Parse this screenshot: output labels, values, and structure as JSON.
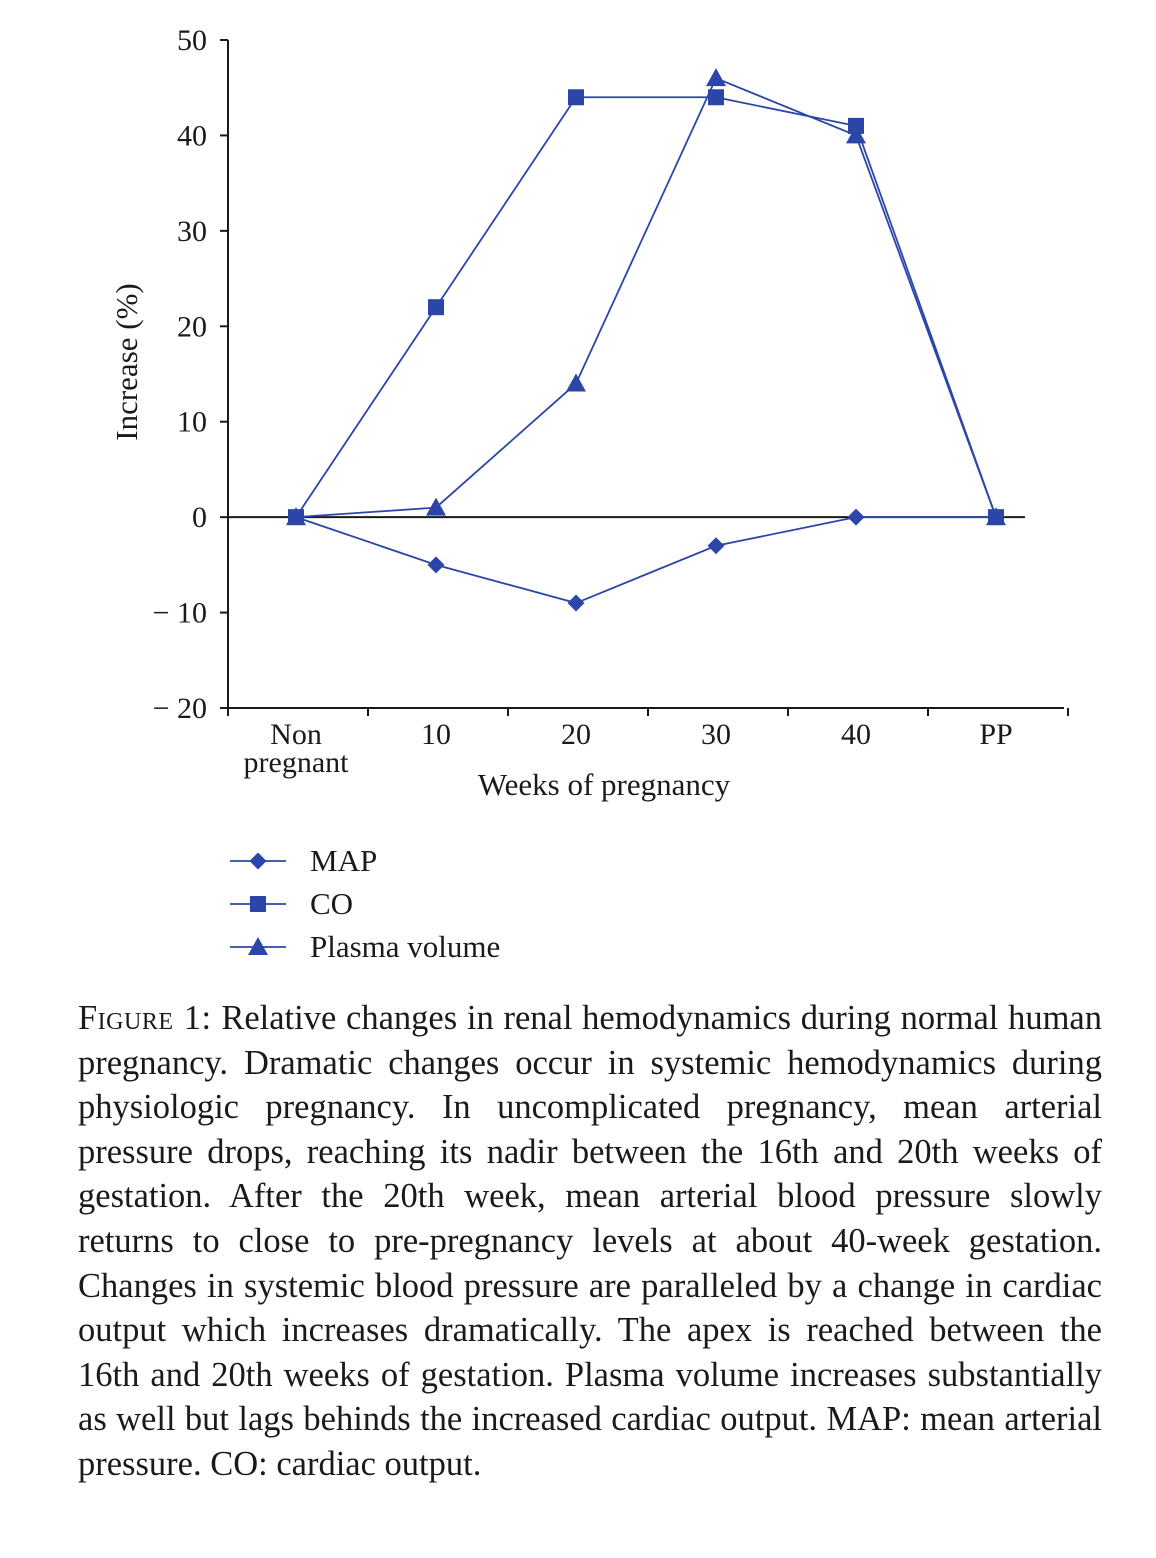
{
  "chart_data": {
    "type": "line",
    "categories": [
      "Non pregnant",
      "10",
      "20",
      "30",
      "40",
      "PP"
    ],
    "category_lines": [
      [
        "Non",
        "pregnant"
      ],
      [
        "10"
      ],
      [
        "20"
      ],
      [
        "30"
      ],
      [
        "40"
      ],
      [
        "PP"
      ]
    ],
    "xlabel": "Weeks of pregnancy",
    "ylabel": "Increase (%)",
    "ylim": [
      -20,
      50
    ],
    "yticks": [
      50,
      40,
      30,
      20,
      10,
      0,
      -10,
      -20
    ],
    "ytick_labels": [
      "50",
      "40",
      "30",
      "20",
      "10",
      "0",
      "− 10",
      "− 20"
    ],
    "grid": false,
    "legend_position": "bottom-left",
    "series": [
      {
        "name": "MAP",
        "marker": "diamond",
        "values": [
          0,
          -5,
          -9,
          -3,
          0,
          0
        ]
      },
      {
        "name": "CO",
        "marker": "square",
        "values": [
          0,
          22,
          44,
          44,
          41,
          0
        ]
      },
      {
        "name": "Plasma volume",
        "marker": "triangle",
        "values": [
          0,
          1,
          14,
          46,
          40,
          0
        ]
      }
    ],
    "colors": {
      "series": "#2b46a8",
      "axis": "#1a1a1a"
    }
  },
  "caption": {
    "label": "Figure 1:",
    "text": " Relative changes in renal hemodynamics during normal human pregnancy. Dramatic changes occur in systemic hemody­namics during physiologic pregnancy. In uncomplicated pregnancy, mean arterial pressure drops, reaching its nadir between the 16th and 20th weeks of gestation. After the 20th week, mean arterial blood pressure slowly returns to close to pre-pregnancy levels at about 40-week gestation. Changes in systemic blood pressure are paralleled by a change in cardiac output which increases dramatically. The apex is reached between the 16th and 20th weeks of gestation. Plasma volume increases substantially as well but lags behinds the increased cardiac output. MAP: mean arterial pressure. CO: cardiac output."
  }
}
